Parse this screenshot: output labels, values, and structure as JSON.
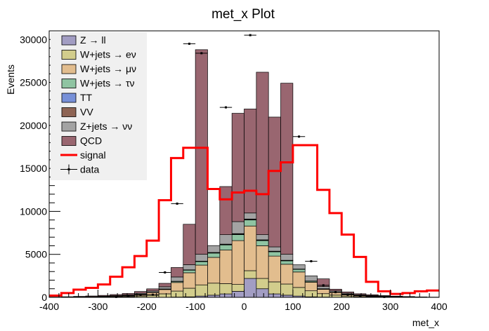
{
  "chart_data": {
    "type": "bar",
    "title": "met_x Plot",
    "xlabel": "met_x",
    "ylabel": "Events",
    "xlim": [
      -400,
      400
    ],
    "ylim": [
      0,
      31000
    ],
    "x_ticks": [
      "-400",
      "-300",
      "-200",
      "-100",
      "0",
      "100",
      "200",
      "300",
      "400"
    ],
    "y_ticks": [
      "0",
      "5000",
      "10000",
      "15000",
      "20000",
      "25000",
      "30000"
    ],
    "grid": false,
    "legend_position": "top-left",
    "bin_edges": [
      -400,
      -375,
      -350,
      -325,
      -300,
      -275,
      -250,
      -225,
      -200,
      -175,
      -150,
      -125,
      -100,
      -75,
      -50,
      -25,
      0,
      25,
      50,
      75,
      100,
      125,
      150,
      175,
      200,
      225,
      250,
      275,
      300,
      325,
      350,
      375,
      400
    ],
    "stack": [
      {
        "name": "Z → ll",
        "color": "#a29dc3",
        "values": [
          0,
          0,
          0,
          0,
          0,
          0,
          0,
          0,
          0,
          10,
          30,
          60,
          150,
          250,
          400,
          700,
          2200,
          1000,
          400,
          250,
          150,
          60,
          30,
          10,
          0,
          0,
          0,
          0,
          0,
          0,
          0,
          0
        ]
      },
      {
        "name": "W+jets → eν",
        "color": "#d2cd8c",
        "values": [
          5,
          10,
          15,
          25,
          40,
          60,
          90,
          150,
          250,
          400,
          700,
          1000,
          1300,
          1400,
          1200,
          800,
          900,
          1200,
          1400,
          1300,
          1000,
          700,
          400,
          250,
          150,
          90,
          60,
          40,
          25,
          15,
          10,
          5
        ]
      },
      {
        "name": "W+jets → μν",
        "color": "#e2bd8e",
        "values": [
          5,
          10,
          20,
          30,
          50,
          80,
          120,
          200,
          300,
          500,
          1000,
          1800,
          2300,
          3000,
          3900,
          5100,
          5200,
          3800,
          3000,
          2300,
          1800,
          1000,
          500,
          300,
          200,
          120,
          80,
          50,
          30,
          20,
          10,
          5
        ]
      },
      {
        "name": "W+jets → τν",
        "color": "#8fc4a2",
        "values": [
          0,
          2,
          4,
          6,
          10,
          15,
          20,
          30,
          40,
          60,
          120,
          300,
          400,
          500,
          600,
          700,
          700,
          600,
          500,
          400,
          300,
          120,
          60,
          40,
          30,
          20,
          15,
          10,
          6,
          4,
          2,
          0
        ]
      },
      {
        "name": "TT",
        "color": "#7790d8",
        "values": [
          0,
          0,
          0,
          0,
          0,
          0,
          0,
          0,
          0,
          5,
          10,
          20,
          30,
          40,
          50,
          60,
          60,
          50,
          40,
          30,
          20,
          10,
          5,
          0,
          0,
          0,
          0,
          0,
          0,
          0,
          0,
          0
        ]
      },
      {
        "name": "VV",
        "color": "#8e6454",
        "values": [
          0,
          0,
          0,
          0,
          0,
          0,
          0,
          0,
          0,
          5,
          10,
          20,
          30,
          30,
          40,
          50,
          50,
          40,
          30,
          30,
          20,
          10,
          5,
          0,
          0,
          0,
          0,
          0,
          0,
          0,
          0,
          0
        ]
      },
      {
        "name": "Z+jets → νν",
        "color": "#a3a3a3",
        "values": [
          5,
          10,
          15,
          20,
          30,
          50,
          70,
          100,
          150,
          250,
          500,
          600,
          800,
          800,
          1100,
          1400,
          700,
          600,
          500,
          700,
          500,
          600,
          250,
          150,
          100,
          70,
          50,
          30,
          20,
          15,
          10,
          5
        ]
      },
      {
        "name": "QCD",
        "color": "#996670",
        "values": [
          20,
          40,
          60,
          80,
          100,
          120,
          150,
          200,
          250,
          400,
          1100,
          4700,
          23800,
          0,
          5600,
          12600,
          12100,
          18900,
          15100,
          19900,
          0,
          0,
          900,
          200,
          150,
          120,
          100,
          80,
          60,
          40,
          20,
          10
        ]
      }
    ],
    "signal": {
      "name": "signal",
      "color": "#ff0000",
      "values": [
        200,
        500,
        900,
        1100,
        1500,
        2400,
        3500,
        4800,
        6600,
        11300,
        16200,
        17400,
        17400,
        12600,
        11400,
        12200,
        12400,
        12000,
        14700,
        15700,
        17700,
        17700,
        12500,
        9800,
        7300,
        4700,
        1800,
        700,
        400,
        500,
        700,
        800
      ]
    },
    "data": {
      "name": "data",
      "x": [
        -287.5,
        -262.5,
        -237.5,
        -212.5,
        -187.5,
        -162.5,
        -137.5,
        -112.5,
        -87.5,
        -62.5,
        -37.5,
        -12.5,
        12.5,
        37.5,
        62.5,
        87.5,
        112.5,
        137.5,
        162.5,
        187.5,
        212.5,
        237.5,
        262.5,
        287.5,
        312.5
      ],
      "y": [
        0,
        50,
        100,
        250,
        300,
        2900,
        10900,
        29500,
        28400,
        0,
        22100,
        0,
        30500,
        0,
        0,
        0,
        18700,
        4200,
        1400,
        600,
        300,
        200,
        100,
        50,
        0
      ]
    }
  }
}
